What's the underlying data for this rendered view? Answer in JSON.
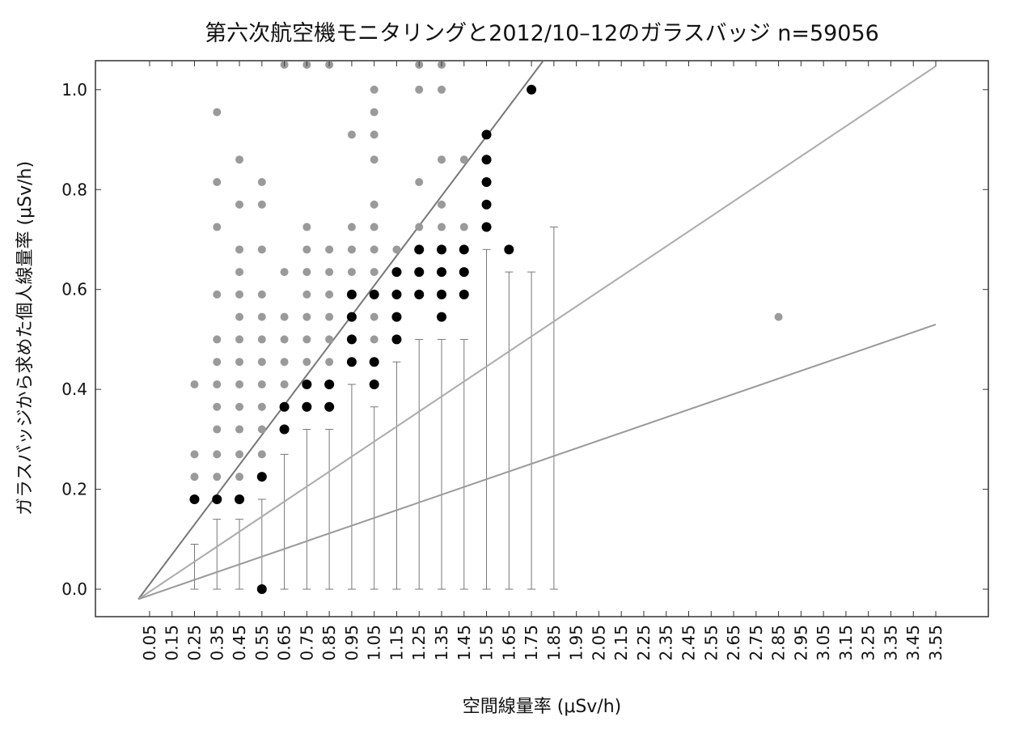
{
  "chart_data": {
    "type": "scatter",
    "title": "第六次航空機モニタリングと2012/10–12のガラスバッジ n=59056",
    "x_label": "空間線量率 (μSv/h)",
    "y_label": "ガラスバッジから求めた個人線量率 (μSv/h)",
    "xlim": [
      -0.191,
      3.784
    ],
    "ylim": [
      -0.055,
      1.058
    ],
    "xticks": [
      0.05,
      0.15,
      0.25,
      0.35,
      0.45,
      0.55,
      0.65,
      0.75,
      0.85,
      0.95,
      1.05,
      1.15,
      1.25,
      1.35,
      1.45,
      1.55,
      1.65,
      1.75,
      1.85,
      1.95,
      2.05,
      2.15,
      2.25,
      2.35,
      2.45,
      2.55,
      2.65,
      2.75,
      2.85,
      2.95,
      3.05,
      3.15,
      3.25,
      3.35,
      3.45,
      3.55
    ],
    "yticks": [
      {
        "value": 0,
        "label": "0.0"
      },
      0.2,
      0.4,
      0.6,
      0.8,
      {
        "value": 1,
        "label": "1.0"
      }
    ],
    "series": [
      {
        "color": "#9a9a9a",
        "x": [
          0.25,
          0.25,
          0.25,
          0.35,
          0.35,
          0.35,
          0.35,
          0.35,
          0.35,
          0.35,
          0.35,
          0.35,
          0.35,
          0.35,
          0.45,
          0.45,
          0.45,
          0.45,
          0.45,
          0.45,
          0.45,
          0.45,
          0.45,
          0.45,
          0.45,
          0.45,
          0.45,
          0.55,
          0.55,
          0.55,
          0.55,
          0.55,
          0.55,
          0.55,
          0.55,
          0.55,
          0.55,
          0.55,
          0.65,
          0.65,
          0.65,
          0.65,
          0.65,
          0.65,
          0.75,
          0.75,
          0.75,
          0.75,
          0.75,
          0.75,
          0.75,
          0.75,
          0.85,
          0.85,
          0.85,
          0.85,
          0.85,
          0.85,
          0.85,
          0.95,
          0.95,
          0.95,
          0.95,
          1.05,
          1.05,
          1.05,
          1.05,
          1.05,
          1.05,
          1.05,
          1.05,
          1.05,
          1.05,
          1.15,
          1.25,
          1.25,
          1.25,
          1.25,
          1.35,
          1.35,
          1.35,
          1.35,
          1.35,
          1.45,
          1.45,
          2.85
        ],
        "values": [
          0.225,
          0.27,
          0.41,
          0.225,
          0.27,
          0.32,
          0.365,
          0.41,
          0.455,
          0.5,
          0.59,
          0.725,
          0.815,
          0.955,
          0.225,
          0.27,
          0.32,
          0.365,
          0.41,
          0.455,
          0.5,
          0.545,
          0.59,
          0.635,
          0.68,
          0.77,
          0.86,
          0.27,
          0.32,
          0.365,
          0.41,
          0.455,
          0.5,
          0.545,
          0.59,
          0.68,
          0.77,
          0.815,
          0.41,
          0.455,
          0.5,
          0.545,
          0.635,
          1.05,
          0.455,
          0.5,
          0.545,
          0.59,
          0.635,
          0.68,
          0.725,
          1.05,
          0.455,
          0.5,
          0.545,
          0.59,
          0.635,
          0.68,
          1.05,
          0.635,
          0.68,
          0.725,
          0.91,
          0.5,
          0.545,
          0.635,
          0.68,
          0.725,
          0.77,
          0.86,
          0.91,
          0.955,
          1.0,
          0.68,
          0.725,
          0.815,
          1.0,
          1.05,
          0.725,
          0.77,
          0.86,
          1.0,
          1.05,
          0.725,
          0.86,
          0.545
        ]
      },
      {
        "color": "#000000",
        "x": [
          0.25,
          0.35,
          0.45,
          0.55,
          0.55,
          0.65,
          0.65,
          0.75,
          0.75,
          0.85,
          0.85,
          0.95,
          0.95,
          0.95,
          0.95,
          1.05,
          1.05,
          1.05,
          1.15,
          1.15,
          1.15,
          1.15,
          1.25,
          1.25,
          1.25,
          1.35,
          1.35,
          1.35,
          1.35,
          1.45,
          1.45,
          1.45,
          1.55,
          1.55,
          1.55,
          1.55,
          1.55,
          1.65,
          1.75
        ],
        "values": [
          0.18,
          0.18,
          0.18,
          0.225,
          0.0,
          0.32,
          0.365,
          0.365,
          0.41,
          0.365,
          0.41,
          0.455,
          0.5,
          0.545,
          0.59,
          0.41,
          0.455,
          0.59,
          0.5,
          0.545,
          0.59,
          0.635,
          0.59,
          0.635,
          0.68,
          0.545,
          0.59,
          0.635,
          0.68,
          0.59,
          0.635,
          0.68,
          0.725,
          0.77,
          0.815,
          0.86,
          0.91,
          0.68,
          1.0
        ]
      }
    ],
    "error_bars": {
      "x": [
        0.25,
        0.35,
        0.45,
        0.55,
        0.65,
        0.75,
        0.85,
        0.95,
        1.05,
        1.15,
        1.25,
        1.35,
        1.45,
        1.55,
        1.65,
        1.75,
        1.85
      ],
      "low": [
        0,
        0,
        0,
        0,
        0,
        0,
        0,
        0,
        0,
        0,
        0,
        0,
        0,
        0,
        0,
        0,
        0
      ],
      "high": [
        0.09,
        0.14,
        0.14,
        0.18,
        0.27,
        0.32,
        0.32,
        0.41,
        0.365,
        0.455,
        0.5,
        0.5,
        0.5,
        0.68,
        0.635,
        0.635,
        0.725
      ]
    },
    "fit_lines": [
      {
        "color": "#777777",
        "x": [
          0,
          1.94
        ],
        "values": [
          -0.02,
          1.14
        ]
      },
      {
        "color": "#aaaaaa",
        "x": [
          0,
          3.55
        ],
        "values": [
          -0.02,
          1.047
        ]
      },
      {
        "color": "#999999",
        "x": [
          0,
          3.55
        ],
        "values": [
          -0.02,
          0.53
        ]
      }
    ]
  }
}
